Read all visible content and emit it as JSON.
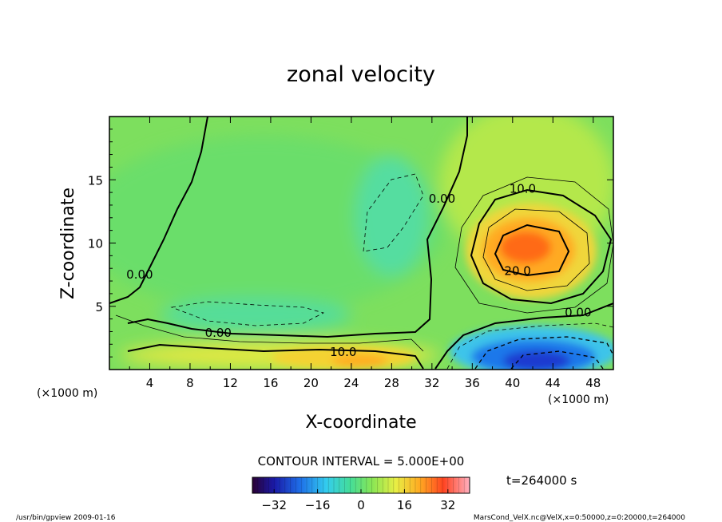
{
  "chart_data": {
    "type": "heatmap",
    "title": "zonal velocity",
    "xlabel": "X-coordinate",
    "ylabel": "Z-coordinate",
    "x_units": "(×1000 m)",
    "y_units": "(×1000 m)",
    "xlim": [
      0,
      50
    ],
    "ylim": [
      0,
      20
    ],
    "x_ticks": [
      "4",
      "8",
      "12",
      "16",
      "20",
      "24",
      "28",
      "32",
      "36",
      "40",
      "44",
      "48"
    ],
    "y_ticks": [
      "5",
      "10",
      "15"
    ],
    "contour_interval": "CONTOUR INTERVAL = 5.000E+00",
    "time_label": "t=264000 s",
    "colorbar": {
      "min": -40,
      "max": 40,
      "ticks": [
        "−32",
        "−16",
        "0",
        "16",
        "32"
      ]
    },
    "contour_labels": [
      {
        "text": "0.00",
        "x": 3.0,
        "z": 7.5
      },
      {
        "text": "0.00",
        "x": 10.8,
        "z": 2.9
      },
      {
        "text": "0.00",
        "x": 33.0,
        "z": 13.5
      },
      {
        "text": "0.00",
        "x": 46.5,
        "z": 4.5
      },
      {
        "text": "10.0",
        "x": 23.2,
        "z": 1.4
      },
      {
        "text": "10.0",
        "x": 41.0,
        "z": 14.3
      },
      {
        "text": "20.0",
        "x": 40.5,
        "z": 7.8
      }
    ],
    "features": [
      {
        "name": "upper positive jet",
        "x": 40.5,
        "z": 9.5,
        "peak": 30
      },
      {
        "name": "surface negative jet",
        "x": 42,
        "z": 1.2,
        "peak": -38
      },
      {
        "name": "surface positive layer",
        "x": 23,
        "z": 0.8,
        "peak": 14
      }
    ]
  },
  "footer": {
    "left": "/usr/bin/gpview   2009-01-16",
    "right": "MarsCond_VelX.nc@VelX,x=0:50000,z=0:20000,t=264000"
  }
}
